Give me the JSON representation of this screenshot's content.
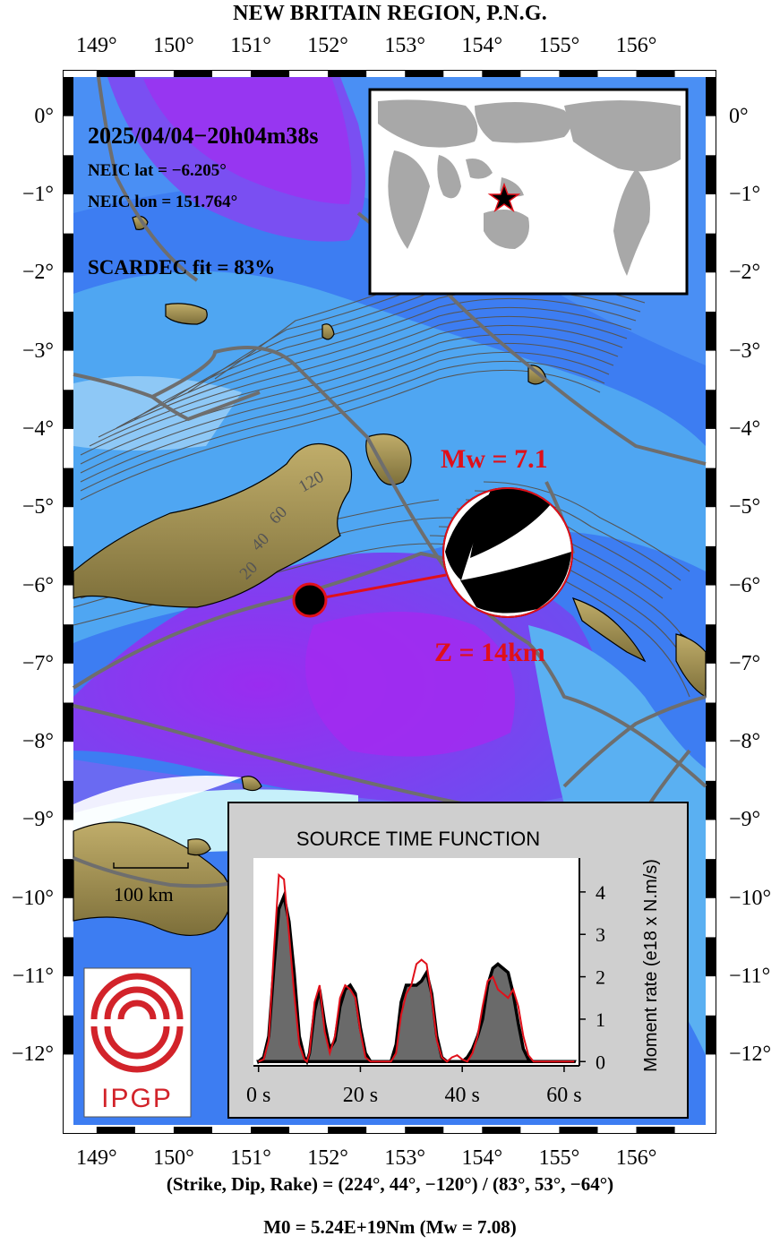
{
  "title": "NEW BRITAIN REGION, P.N.G.",
  "x_ticks": [
    "149°",
    "150°",
    "151°",
    "152°",
    "153°",
    "154°",
    "155°",
    "156°"
  ],
  "y_ticks": [
    "0°",
    "−1°",
    "−2°",
    "−3°",
    "−4°",
    "−5°",
    "−6°",
    "−7°",
    "−8°",
    "−9°",
    "−10°",
    "−11°",
    "−12°"
  ],
  "event": {
    "datetime": "2025/04/04−20h04m38s",
    "lat_label": "NEIC lat  = −6.205°",
    "lon_label": "NEIC lon = 151.764°",
    "fit_label": "SCARDEC fit = 83%",
    "mw_label": "Mw = 7.1",
    "depth_label": "Z =  14km",
    "lat": -6.205,
    "lon": 151.764
  },
  "slab_contours": [
    "120",
    "60",
    "40",
    "20"
  ],
  "scale_bar": "100 km",
  "logo": "IPGP",
  "colors": {
    "annot": "#e0101a",
    "deep": "#9a2cf0",
    "shallow": "#3fa8f0",
    "land": "#9a8a4a"
  },
  "stf": {
    "title": "SOURCE TIME FUNCTION",
    "ylabel": "Moment rate (e18 x N.m/s)",
    "x_tick_labels": [
      "0 s",
      "20 s",
      "40 s",
      "60 s"
    ],
    "y_tick_labels": [
      "0",
      "1",
      "2",
      "3",
      "4"
    ]
  },
  "chart_data": {
    "type": "area",
    "title": "SOURCE TIME FUNCTION",
    "ylabel": "Moment rate (e18 x N.m/s)",
    "xlim": [
      -1,
      63
    ],
    "ylim": [
      -0.1,
      4.8
    ],
    "x_ticks": [
      0,
      20,
      40,
      60
    ],
    "y_ticks": [
      0,
      1,
      2,
      3,
      4
    ],
    "series": [
      {
        "style": "black outline, grey fill",
        "x": [
          0,
          1,
          2,
          3,
          4,
          5,
          6,
          7,
          8,
          9,
          9.5,
          10,
          11,
          12,
          13,
          14,
          15,
          16,
          17,
          18,
          19,
          20,
          21,
          22,
          23,
          24,
          25,
          26,
          27,
          28,
          29,
          30,
          31,
          32,
          33,
          34,
          35,
          36,
          37,
          38,
          39,
          40,
          41,
          42,
          43,
          44,
          45,
          46,
          47,
          48,
          49,
          50,
          51,
          52,
          53,
          54,
          55,
          56,
          57,
          58,
          60,
          62
        ],
        "values": [
          0,
          0.1,
          0.6,
          2.2,
          3.6,
          3.9,
          3.3,
          2.1,
          0.6,
          0.1,
          0,
          0.2,
          1.2,
          1.7,
          0.9,
          0.3,
          0.5,
          1.3,
          1.7,
          1.8,
          1.6,
          0.8,
          0.2,
          0,
          0,
          0,
          0,
          0,
          0.4,
          1.4,
          1.8,
          1.8,
          1.8,
          1.9,
          2.1,
          1.6,
          0.6,
          0.1,
          0,
          0,
          0,
          0,
          0.1,
          0.3,
          0.6,
          1.0,
          1.8,
          2.2,
          2.3,
          2.2,
          2.1,
          1.6,
          0.9,
          0.3,
          0.05,
          0,
          0,
          0,
          0,
          0,
          0,
          0
        ]
      },
      {
        "style": "red line",
        "x": [
          0,
          1,
          2,
          3,
          4,
          5,
          6,
          7,
          8,
          9,
          9.5,
          10,
          11,
          12,
          13,
          14,
          15,
          16,
          17,
          18,
          19,
          20,
          21,
          22,
          23,
          24,
          25,
          26,
          27,
          28,
          29,
          30,
          31,
          32,
          33,
          34,
          35,
          36,
          37,
          38,
          39,
          40,
          41,
          42,
          43,
          44,
          45,
          46,
          47,
          48,
          49,
          50,
          51,
          52,
          53,
          54,
          55,
          56,
          57,
          58,
          60,
          62
        ],
        "values": [
          0,
          0.05,
          0.5,
          2.6,
          4.4,
          4.3,
          3.0,
          1.6,
          0.4,
          0.05,
          0,
          0.2,
          1.4,
          1.8,
          0.7,
          0.2,
          0.6,
          1.5,
          1.8,
          1.7,
          1.5,
          0.7,
          0.1,
          0,
          0,
          0,
          0,
          0,
          0.2,
          1.1,
          1.6,
          1.8,
          2.3,
          2.4,
          2.3,
          1.5,
          0.5,
          0.1,
          0,
          0.1,
          0.15,
          0.05,
          0,
          0.2,
          0.6,
          1.3,
          1.9,
          2.0,
          1.7,
          1.6,
          1.5,
          1.7,
          1.3,
          0.6,
          0.15,
          0,
          0,
          0,
          0,
          0,
          0,
          0
        ]
      }
    ]
  }
}
